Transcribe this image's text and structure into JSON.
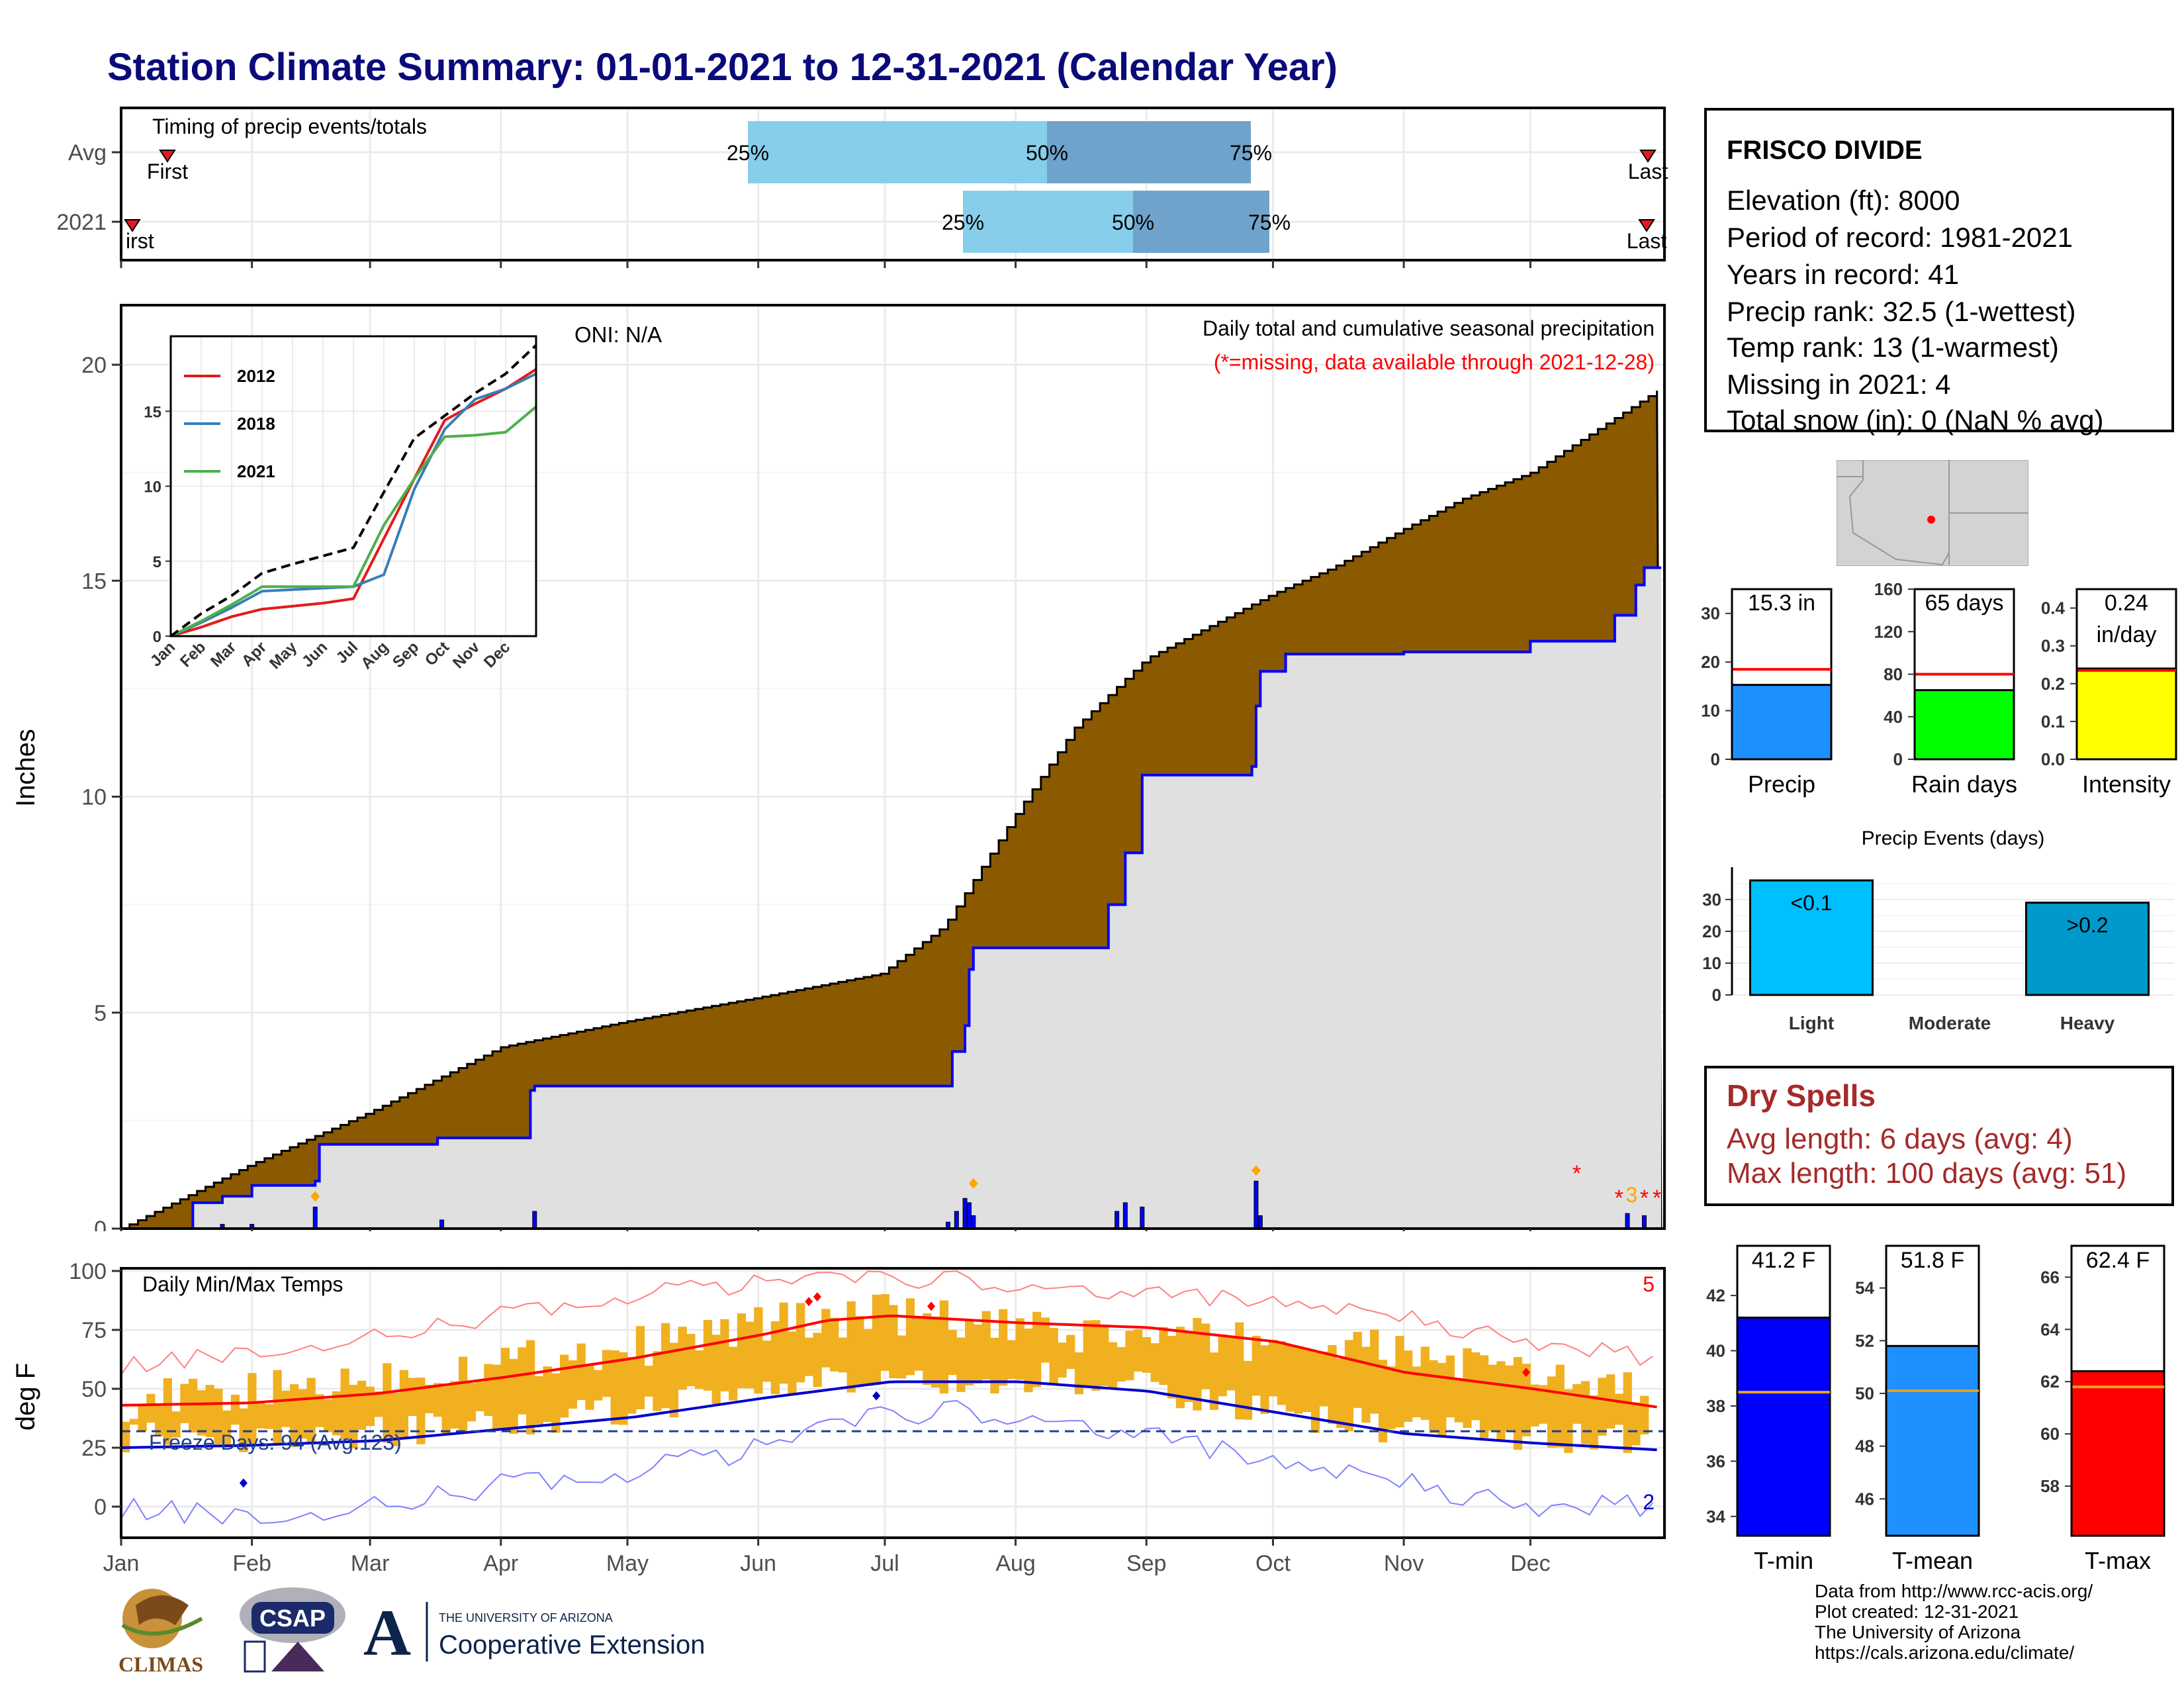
{
  "title": "Station Climate Summary: 01-01-2021 to 12-31-2021 (Calendar Year)",
  "months": [
    "Jan",
    "Feb",
    "Mar",
    "Apr",
    "May",
    "Jun",
    "Jul",
    "Aug",
    "Sep",
    "Oct",
    "Nov",
    "Dec"
  ],
  "timing_panel": {
    "label": "Timing of precip events/totals",
    "row_labels": [
      "Avg",
      "2021"
    ],
    "first_label": "First",
    "first_label_2021": "irst",
    "last_label": "Last",
    "pct_25": "25%",
    "pct_50": "50%",
    "pct_75": "75%",
    "colors": {
      "light": "#87ceeb",
      "dark": "#6fa3cb",
      "marker": "#e41a1c"
    }
  },
  "precip_panel": {
    "ylabel": "Inches",
    "oni": "ONI: N/A",
    "title": "Daily total and cumulative seasonal precipitation",
    "missing_note": "(*=missing, data available through 2021-12-28)",
    "missing_count": "3",
    "colors": {
      "avg_fill": "#8b5a00",
      "obs_fill": "#e0e0e0",
      "obs_line": "#0000ff",
      "daily_bar": "#0000ff"
    },
    "inset": {
      "legend": [
        "2012",
        "2018",
        "2021"
      ],
      "colors": [
        "#e41a1c",
        "#377eb8",
        "#4daf4a"
      ],
      "months": [
        "Jan",
        "Feb",
        "Mar",
        "Apr",
        "May",
        "Jun",
        "Jul",
        "Aug",
        "Sep",
        "Oct",
        "Nov",
        "Dec"
      ]
    }
  },
  "temp_panel": {
    "ylabel": "deg F",
    "title": "Daily Min/Max Temps",
    "freeze_text": "Freeze Days: 94 (Avg.123)",
    "count_high": "5",
    "count_low": "2",
    "freeze_line_f": 32,
    "colors": {
      "range_bar": "#f0b020",
      "avg_max": "#ff0000",
      "avg_min": "#0000cd",
      "rec_max": "#ff8080",
      "rec_min": "#8080ff"
    }
  },
  "info": {
    "station": "FRISCO DIVIDE",
    "elevation": "Elevation (ft): 8000",
    "period": "Period of record: 1981-2021",
    "years": "Years in record: 41",
    "precip_rank": "Precip rank: 32.5 (1-wettest)",
    "temp_rank": "Temp rank: 13 (1-warmest)",
    "missing": "Missing in 2021: 4",
    "snow": "Total snow (in): 0 (NaN % avg)"
  },
  "dry_spells": {
    "title": "Dry Spells",
    "avg": "Avg length: 6 days (avg: 4)",
    "max": "Max length: 100 days (avg: 51)"
  },
  "credits": [
    "Data from http://www.rcc-acis.org/",
    "Plot created: 12-31-2021",
    "The University of Arizona",
    "https://cals.arizona.edu/climate/"
  ],
  "logos": {
    "climas": "CLIMAS",
    "csap": "CSAP",
    "ua_small": "THE UNIVERSITY OF ARIZONA",
    "ua_big": "Cooperative Extension",
    "ua_letter": "A"
  },
  "chart_data": [
    {
      "type": "area",
      "title": "Daily total and cumulative seasonal precipitation",
      "xlabel": "",
      "ylabel": "Inches",
      "ylim": [
        0,
        21
      ],
      "yticks": [
        0,
        5,
        10,
        15,
        20
      ],
      "xlim": [
        "2021-01-01",
        "2021-12-31"
      ],
      "series": [
        {
          "name": "average cumulative",
          "x": [
            "2021-01-01",
            "2021-02-01",
            "2021-03-01",
            "2021-04-01",
            "2021-05-01",
            "2021-06-01",
            "2021-06-30",
            "2021-07-15",
            "2021-08-01",
            "2021-08-15",
            "2021-09-01",
            "2021-09-15",
            "2021-10-01",
            "2021-10-15",
            "2021-11-01",
            "2021-11-15",
            "2021-12-01",
            "2021-12-31"
          ],
          "y": [
            0.0,
            1.5,
            2.7,
            4.2,
            4.8,
            5.35,
            5.9,
            7.0,
            9.6,
            11.6,
            13.2,
            13.9,
            14.7,
            15.3,
            16.2,
            16.9,
            17.5,
            19.4
          ]
        },
        {
          "name": "2021 cumulative",
          "x": [
            "2021-01-01",
            "2021-01-18",
            "2021-01-25",
            "2021-02-01",
            "2021-02-16",
            "2021-02-17",
            "2021-03-17",
            "2021-03-18",
            "2021-04-08",
            "2021-04-09",
            "2021-07-16",
            "2021-07-17",
            "2021-07-20",
            "2021-07-21",
            "2021-07-22",
            "2021-08-23",
            "2021-08-27",
            "2021-08-31",
            "2021-09-03",
            "2021-09-26",
            "2021-09-27",
            "2021-09-28",
            "2021-10-04",
            "2021-11-01",
            "2021-12-01",
            "2021-12-21",
            "2021-12-26",
            "2021-12-28"
          ],
          "y": [
            0.0,
            0.6,
            0.75,
            1.0,
            1.1,
            1.95,
            2.1,
            2.1,
            3.2,
            3.3,
            3.3,
            4.1,
            4.7,
            6.0,
            6.5,
            7.5,
            8.7,
            10.5,
            10.5,
            10.7,
            12.1,
            12.9,
            13.3,
            13.35,
            13.6,
            14.2,
            14.9,
            15.3
          ]
        },
        {
          "name": "daily total",
          "x": [
            "2021-01-25",
            "2021-02-01",
            "2021-02-16",
            "2021-03-18",
            "2021-04-09",
            "2021-07-16",
            "2021-07-18",
            "2021-07-20",
            "2021-07-21",
            "2021-07-22",
            "2021-08-25",
            "2021-08-27",
            "2021-08-31",
            "2021-09-27",
            "2021-09-28",
            "2021-12-24",
            "2021-12-28"
          ],
          "y": [
            0.1,
            0.1,
            0.5,
            0.2,
            0.4,
            0.15,
            0.4,
            0.7,
            0.6,
            0.3,
            0.4,
            0.6,
            0.5,
            1.1,
            0.3,
            0.35,
            0.3
          ]
        }
      ]
    },
    {
      "type": "line",
      "title": "",
      "xlabel": "",
      "ylabel": "",
      "ylim": [
        0,
        20
      ],
      "yticks": [
        0,
        5,
        10,
        15
      ],
      "series": [
        {
          "name": "2012",
          "x_month": [
            0,
            1,
            2,
            3,
            4,
            5,
            6,
            7,
            8,
            9,
            10,
            11,
            12
          ],
          "values": [
            0,
            0.6,
            1.3,
            1.8,
            2.0,
            2.2,
            2.5,
            6.5,
            10.5,
            14.4,
            15.5,
            16.5,
            17.8
          ]
        },
        {
          "name": "2018",
          "x_month": [
            0,
            1,
            2,
            3,
            4,
            5,
            6,
            7,
            8,
            9,
            10,
            11,
            12
          ],
          "values": [
            0,
            0.9,
            1.9,
            3.0,
            3.1,
            3.2,
            3.3,
            4.1,
            9.8,
            13.8,
            15.8,
            16.5,
            17.5
          ]
        },
        {
          "name": "2021",
          "x_month": [
            0,
            1,
            2,
            3,
            4,
            5,
            6,
            7,
            8,
            9,
            10,
            11,
            12
          ],
          "values": [
            0,
            1.0,
            2.1,
            3.3,
            3.3,
            3.3,
            3.3,
            7.4,
            10.5,
            13.3,
            13.4,
            13.6,
            15.3
          ]
        },
        {
          "name": "average",
          "x_month": [
            0,
            1,
            2,
            3,
            4,
            5,
            6,
            7,
            8,
            9,
            10,
            11,
            12
          ],
          "values": [
            0,
            1.5,
            2.7,
            4.2,
            4.8,
            5.35,
            5.9,
            9.6,
            13.2,
            14.7,
            16.2,
            17.5,
            19.4
          ]
        }
      ]
    },
    {
      "type": "line",
      "title": "Daily Min/Max Temps",
      "xlabel": "",
      "ylabel": "deg F",
      "ylim": [
        -15,
        100
      ],
      "yticks": [
        0,
        25,
        50,
        75,
        100
      ],
      "series": [
        {
          "name": "avg max",
          "x_month": [
            0,
            1,
            2,
            3,
            4,
            5,
            5.5,
            6,
            7,
            8,
            9,
            10,
            11,
            12
          ],
          "values": [
            43,
            44,
            48,
            55,
            63,
            73,
            79,
            81,
            78,
            76,
            70,
            57,
            50,
            42
          ]
        },
        {
          "name": "avg min",
          "x_month": [
            0,
            1,
            2,
            3,
            4,
            5,
            6,
            7,
            8,
            9,
            10,
            11,
            12
          ],
          "values": [
            25,
            26,
            28,
            33,
            38,
            46,
            53,
            53,
            49,
            40,
            31,
            27,
            24
          ]
        },
        {
          "name": "record max",
          "x_month": [
            0,
            1,
            2,
            3,
            4,
            5,
            6,
            7,
            8,
            9,
            10,
            11,
            12
          ],
          "values": [
            60,
            65,
            72,
            82,
            90,
            95,
            97,
            95,
            90,
            88,
            80,
            70,
            62
          ]
        },
        {
          "name": "record min",
          "x_month": [
            0,
            1,
            2,
            3,
            4,
            5,
            6,
            7,
            8,
            9,
            10,
            11,
            12
          ],
          "values": [
            0,
            -5,
            0,
            10,
            15,
            25,
            40,
            40,
            30,
            20,
            10,
            0,
            0
          ]
        },
        {
          "name": "observed max",
          "x_month": [
            0,
            1,
            2,
            3,
            4,
            5,
            6,
            7,
            8,
            9,
            10,
            11,
            12
          ],
          "values": [
            45,
            48,
            55,
            62,
            68,
            78,
            82,
            74,
            72,
            70,
            65,
            55,
            48
          ]
        },
        {
          "name": "observed min",
          "x_month": [
            0,
            1,
            2,
            3,
            4,
            5,
            6,
            7,
            8,
            9,
            10,
            11,
            12
          ],
          "values": [
            30,
            28,
            32,
            36,
            42,
            50,
            55,
            55,
            50,
            40,
            32,
            30,
            28
          ]
        }
      ]
    },
    {
      "type": "bar",
      "title": "",
      "categories": [
        "Precip",
        "Rain days",
        "Intensity"
      ],
      "values": [
        15.3,
        65,
        0.24
      ],
      "labels": [
        "15.3 in",
        "65 days",
        "0.24 in/day"
      ],
      "label_lines": [
        [
          "15.3 in"
        ],
        [
          "65 days"
        ],
        [
          "0.24",
          "in/day"
        ]
      ],
      "averages": [
        18.5,
        80,
        0.235
      ],
      "ylims": [
        [
          0,
          35
        ],
        [
          0,
          160
        ],
        [
          0,
          0.45
        ]
      ],
      "yticks": [
        [
          0,
          10,
          20,
          30
        ],
        [
          0,
          40,
          80,
          120,
          160
        ],
        [
          0.0,
          0.1,
          0.2,
          0.3,
          0.4
        ]
      ],
      "colors": [
        "#1e90ff",
        "#00ff00",
        "#ffff00"
      ]
    },
    {
      "type": "bar",
      "title": "Precip Events (days)",
      "categories": [
        "Light",
        "Moderate",
        "Heavy"
      ],
      "values": [
        36,
        0,
        29
      ],
      "labels": [
        "<0.1",
        "",
        ">0.2"
      ],
      "ylim": [
        0,
        36
      ],
      "yticks": [
        0,
        10,
        20,
        30
      ],
      "colors": [
        "#00bfff",
        "#6fa3cb",
        "#0099cc"
      ]
    },
    {
      "type": "bar",
      "title": "",
      "categories": [
        "T-min",
        "T-mean",
        "T-max"
      ],
      "values": [
        41.2,
        51.8,
        62.4
      ],
      "labels": [
        "41.2 F",
        "51.8 F",
        "62.4 F"
      ],
      "averages": [
        38.5,
        50.1,
        61.8
      ],
      "ylims": [
        [
          33.3,
          43.8
        ],
        [
          44.6,
          55.6
        ],
        [
          56.1,
          67.2
        ]
      ],
      "yticks": [
        [
          34,
          36,
          38,
          40,
          42
        ],
        [
          46,
          48,
          50,
          52,
          54
        ],
        [
          58,
          60,
          62,
          64,
          66
        ]
      ],
      "colors": [
        "#0000ff",
        "#1e90ff",
        "#ff0000"
      ]
    }
  ]
}
